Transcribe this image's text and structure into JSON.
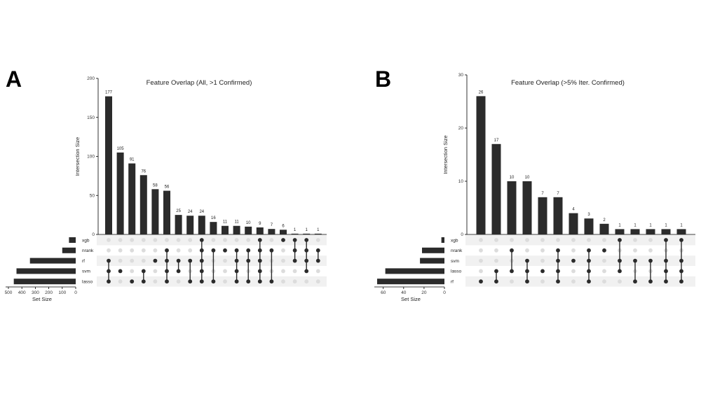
{
  "figure": {
    "panel_a_letter": "A",
    "panel_b_letter": "B"
  },
  "chart_data": [
    {
      "type": "bar",
      "subtype": "upset",
      "panel": "A",
      "title": "Feature Overlap (All, >1 Confirmed)",
      "ylabel": "Intersection Size",
      "ylim": [
        0,
        200
      ],
      "yticks": [
        0,
        50,
        100,
        150,
        200
      ],
      "values": [
        177,
        105,
        91,
        76,
        58,
        56,
        25,
        24,
        24,
        16,
        11,
        11,
        10,
        9,
        7,
        6,
        1,
        1,
        1
      ],
      "sets": [
        "xgb",
        "nrank",
        "rf",
        "svm",
        "lasso"
      ],
      "set_sizes": [
        50,
        100,
        340,
        440,
        460
      ],
      "set_size_label": "Set Size",
      "set_size_ticks": [
        500,
        400,
        300,
        200,
        100,
        0
      ],
      "set_size_max": 500,
      "membership": [
        [
          "svm",
          "lasso",
          "rf"
        ],
        [
          "svm"
        ],
        [
          "lasso"
        ],
        [
          "svm",
          "lasso"
        ],
        [
          "rf"
        ],
        [
          "nrank",
          "rf",
          "svm",
          "lasso"
        ],
        [
          "rf",
          "svm"
        ],
        [
          "rf",
          "lasso"
        ],
        [
          "xgb",
          "nrank",
          "rf",
          "svm",
          "lasso"
        ],
        [
          "nrank",
          "lasso"
        ],
        [
          "nrank"
        ],
        [
          "nrank",
          "rf",
          "svm",
          "lasso"
        ],
        [
          "nrank",
          "rf",
          "lasso"
        ],
        [
          "xgb",
          "nrank",
          "rf",
          "svm",
          "lasso"
        ],
        [
          "nrank",
          "lasso"
        ],
        [
          "xgb"
        ],
        [
          "xgb",
          "nrank",
          "rf"
        ],
        [
          "xgb",
          "nrank",
          "rf",
          "svm"
        ],
        [
          "nrank",
          "rf"
        ]
      ]
    },
    {
      "type": "bar",
      "subtype": "upset",
      "panel": "B",
      "title": "Feature Overlap (>5% Iter. Confirmed)",
      "ylabel": "Intersection Size",
      "ylim": [
        0,
        30
      ],
      "yticks": [
        0,
        10,
        20,
        30
      ],
      "values": [
        26,
        17,
        10,
        10,
        7,
        7,
        4,
        3,
        2,
        1,
        1,
        1,
        1,
        1
      ],
      "sets": [
        "xgb",
        "nrank",
        "svm",
        "lasso",
        "rf"
      ],
      "set_sizes": [
        3,
        22,
        24,
        58,
        66
      ],
      "set_size_label": "Set Size",
      "set_size_ticks": [
        60,
        40,
        20,
        0
      ],
      "set_size_max": 66,
      "membership": [
        [
          "rf"
        ],
        [
          "lasso",
          "rf"
        ],
        [
          "nrank",
          "lasso"
        ],
        [
          "svm",
          "lasso",
          "rf"
        ],
        [
          "lasso"
        ],
        [
          "nrank",
          "svm",
          "lasso",
          "rf"
        ],
        [
          "svm"
        ],
        [
          "nrank",
          "svm",
          "lasso",
          "rf"
        ],
        [
          "nrank"
        ],
        [
          "xgb",
          "svm",
          "lasso"
        ],
        [
          "svm",
          "rf"
        ],
        [
          "svm",
          "rf"
        ],
        [
          "xgb",
          "svm",
          "lasso",
          "rf"
        ],
        [
          "xgb",
          "svm",
          "lasso",
          "rf"
        ]
      ]
    }
  ]
}
